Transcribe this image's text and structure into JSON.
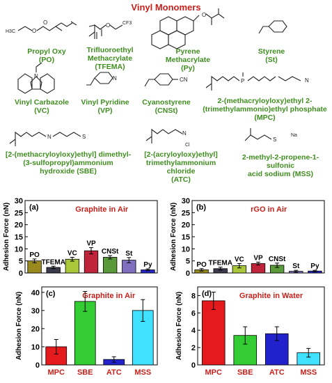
{
  "title": "Vinyl Monomers",
  "monomers": [
    {
      "name": "Propyl Oxy",
      "abbr": "(PO)"
    },
    {
      "name": "Trifluoroethyl",
      "name2": "Methacrylate",
      "abbr": "(TFEMA)"
    },
    {
      "name": "Pyrene",
      "name2": "Methacrylate",
      "abbr": "(Py)"
    },
    {
      "name": "Styrene",
      "abbr": "(St)"
    },
    {
      "name": "Vinyl Carbazole",
      "abbr": "(VC)"
    },
    {
      "name": "Vinyl Pyridine",
      "abbr": "(VP)"
    },
    {
      "name": "Cyanostyrene",
      "abbr": "(CNSt)"
    },
    {
      "name": "2-(methacryloyloxy)ethyl 2-",
      "name2": "(trimethylammonio)ethyl phosphate",
      "abbr": "(MPC)"
    },
    {
      "name": "[2-(methacryloyloxy)ethyl] dimethyl-",
      "name2": "(3-sulfopropyl)ammonium",
      "name3": "hydroxide (SBE)"
    },
    {
      "name": "[2-(acryloyloxy)ethyl]",
      "name2": "trimethylammonium chloride",
      "abbr": "(ATC)"
    },
    {
      "name": "2-methyl-2-propene-1-sulfonic",
      "name2": "acid sodium (MSS)"
    }
  ],
  "structure_labels": {
    "po_h3c": "H3C",
    "po_o": "O",
    "tfema_cf3": "CF3",
    "tfema_o": "O",
    "py_o": "O",
    "vc_n": "N",
    "vp_n": "N",
    "cnst_cn": "CN",
    "mpc_p": "P",
    "mpc_n": "N",
    "sbe_n": "N",
    "sbe_s": "S",
    "atc_n": "N",
    "atc_cl": "Cl",
    "mss_s": "S",
    "mss_na": "Na"
  },
  "chart_data": [
    {
      "type": "bar",
      "panel": "(a)",
      "title": "Graphite in Air",
      "ylabel": "Adhesion Force (nN)",
      "ylim": [
        0,
        30
      ],
      "yticks": [
        0,
        5,
        10,
        15,
        20,
        25,
        30
      ],
      "categories": [
        "PO",
        "TFEMA",
        "VC",
        "VP",
        "CNSt",
        "St",
        "Py"
      ],
      "values": [
        5.0,
        2.3,
        5.7,
        9.2,
        6.5,
        5.3,
        1.3
      ],
      "errors": [
        0.8,
        0.5,
        0.8,
        1.3,
        0.7,
        1.1,
        0.4
      ],
      "colors": [
        "#9a8a1e",
        "#3a3a4a",
        "#a8c83a",
        "#c0243a",
        "#5a9a3a",
        "#8070c0",
        "#2828c8"
      ]
    },
    {
      "type": "bar",
      "panel": "(b)",
      "title": "rGO in Air",
      "ylabel": "Adhesion Force (nN)",
      "ylim": [
        0,
        30
      ],
      "yticks": [
        0,
        5,
        10,
        15,
        20,
        25,
        30
      ],
      "categories": [
        "PO",
        "TFEMA",
        "VC",
        "VP",
        "CNSt",
        "St",
        "Py"
      ],
      "values": [
        1.3,
        1.8,
        3.0,
        3.9,
        3.2,
        0.7,
        0.8
      ],
      "errors": [
        0.5,
        0.6,
        0.9,
        0.6,
        0.9,
        0.4,
        0.3
      ],
      "colors": [
        "#9a8a1e",
        "#3a3a4a",
        "#a8c83a",
        "#c0243a",
        "#5a9a3a",
        "#8070c0",
        "#2828c8"
      ]
    },
    {
      "type": "bar",
      "panel": "(c)",
      "title": "Graphite in Air",
      "ylabel": "Adhesion Force (nN)",
      "ylim": [
        0,
        43
      ],
      "yticks": [
        0,
        10,
        20,
        30,
        40
      ],
      "categories": [
        "MPC",
        "SBE",
        "ATC",
        "MSS"
      ],
      "values": [
        10,
        35,
        3,
        30
      ],
      "errors": [
        4,
        5.5,
        1.5,
        6
      ],
      "colors": [
        "#e41a1c",
        "#33cc33",
        "#2222cc",
        "#40e0ff"
      ]
    },
    {
      "type": "bar",
      "panel": "(d)",
      "title": "Graphite in Water",
      "ylabel": "Adhesion Force (nN)",
      "ylim": [
        0,
        9
      ],
      "yticks": [
        0,
        2,
        4,
        6,
        8
      ],
      "categories": [
        "MPC",
        "SBE",
        "ATC",
        "MSS"
      ],
      "values": [
        7.4,
        3.4,
        3.6,
        1.4
      ],
      "errors": [
        1.0,
        1.0,
        0.8,
        0.5
      ],
      "colors": [
        "#e41a1c",
        "#33cc33",
        "#2222cc",
        "#40e0ff"
      ]
    }
  ]
}
